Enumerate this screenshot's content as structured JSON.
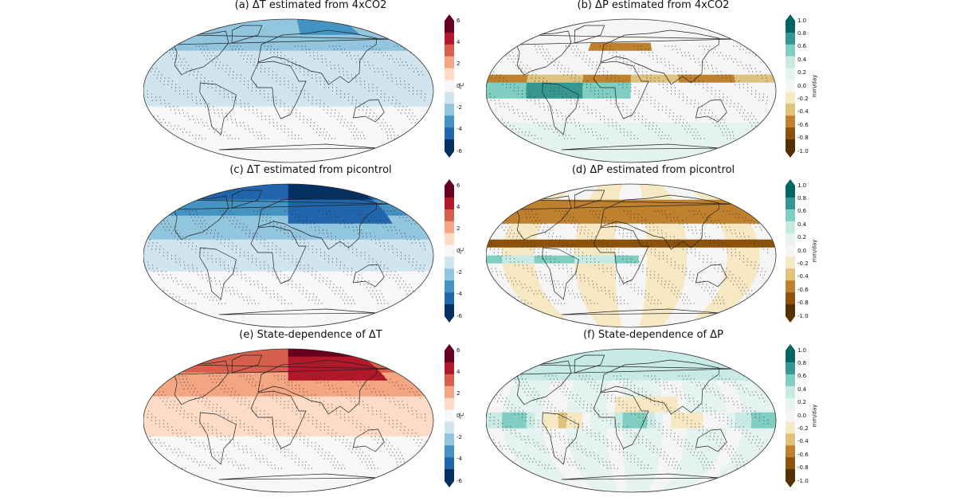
{
  "panels": [
    {
      "id": "a",
      "title": "(a) ΔT estimated from 4xCO2",
      "variable": "T",
      "pattern": "cool_mild"
    },
    {
      "id": "b",
      "title": "(b) ΔP estimated from 4xCO2",
      "variable": "P",
      "pattern": "precip_itcz"
    },
    {
      "id": "c",
      "title": "(c) ΔT estimated from picontrol",
      "variable": "T",
      "pattern": "cool_strong"
    },
    {
      "id": "d",
      "title": "(d) ΔP estimated from picontrol",
      "variable": "P",
      "pattern": "precip_itcz_dry"
    },
    {
      "id": "e",
      "title": "(e) State-dependence of ΔT",
      "variable": "T",
      "pattern": "warm"
    },
    {
      "id": "f",
      "title": "(f) State-dependence of ΔP",
      "variable": "P",
      "pattern": "precip_wet"
    }
  ],
  "colorbars": {
    "T": {
      "unit": "°C",
      "ticks": [
        "6",
        "4",
        "2",
        "0",
        "-2",
        "-4",
        "-6"
      ],
      "colors": [
        "#67001f",
        "#b2182b",
        "#d6604d",
        "#f4a582",
        "#fddbc7",
        "#f7f7f7",
        "#d1e5f0",
        "#92c5de",
        "#4393c3",
        "#2166ac",
        "#053061"
      ]
    },
    "P": {
      "unit": "mm/day",
      "ticks": [
        "1.0",
        "0.8",
        "0.6",
        "0.4",
        "0.2",
        "0.0",
        "-0.2",
        "-0.4",
        "-0.6",
        "-0.8",
        "-1.0"
      ],
      "colors": [
        "#01665e",
        "#35978f",
        "#80cdc1",
        "#c7eae5",
        "#e4f3f0",
        "#f5f5f5",
        "#f6e8c3",
        "#dfc27d",
        "#bf812d",
        "#8c510a",
        "#543005"
      ]
    }
  }
}
